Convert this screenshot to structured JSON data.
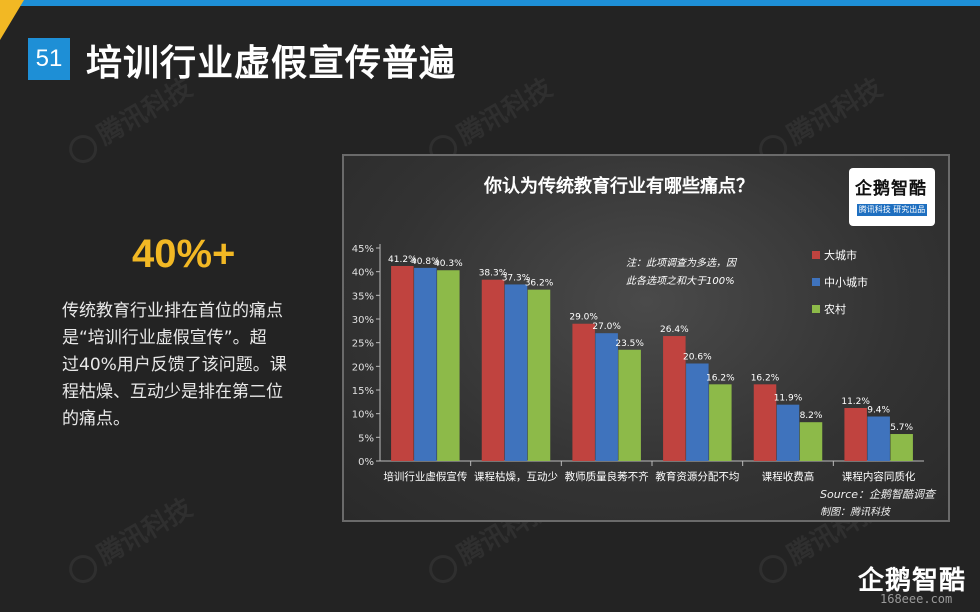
{
  "slide": {
    "number": "51",
    "title": "培训行业虚假宣传普遍",
    "stat": "40%+",
    "description": [
      "传统教育行业排在首位的痛点",
      "是“培训行业虚假宣传”。超",
      "过40%用户反馈了该问题。课",
      "程枯燥、互动少是排在第二位",
      "的痛点。"
    ],
    "watermark": "腾讯科技",
    "brand": "企鹅智酷",
    "site": "168eee.com"
  },
  "logo": {
    "name": "企鹅智酷",
    "tagline": "腾讯科技 研究出品"
  },
  "colors": {
    "big_city": "#c0433f",
    "mid_city": "#3f73bd",
    "rural": "#8dba49",
    "accent": "#f2b824",
    "topbar": "#1e8fd6"
  },
  "chart_data": {
    "type": "bar",
    "title": "你认为传统教育行业有哪些痛点？",
    "categories": [
      "培训行业虚假宣传",
      "课程枯燥，互动少",
      "教师质量良莠不齐",
      "教育资源分配不均",
      "课程收费高",
      "课程内容同质化"
    ],
    "series": [
      {
        "name": "大城市",
        "color": "#c0433f",
        "values": [
          41.2,
          38.3,
          29.0,
          26.4,
          16.2,
          11.2
        ]
      },
      {
        "name": "中小城市",
        "color": "#3f73bd",
        "values": [
          40.8,
          37.3,
          27.0,
          20.6,
          11.9,
          9.4
        ]
      },
      {
        "name": "农村",
        "color": "#8dba49",
        "values": [
          40.3,
          36.2,
          23.5,
          16.2,
          8.2,
          5.7
        ]
      }
    ],
    "ylim": [
      0,
      45
    ],
    "yticks": [
      "0%",
      "5%",
      "10%",
      "15%",
      "20%",
      "25%",
      "30%",
      "35%",
      "40%",
      "45%"
    ],
    "data_labels": [
      [
        "41.2%",
        "38.3%",
        "29.0%",
        "26.4%",
        "16.2%",
        "11.2%"
      ],
      [
        "40.8%",
        "37.3%",
        "27.0%",
        "20.6%",
        "11.9%",
        "9.4%"
      ],
      [
        "40.3%",
        "36.2%",
        "23.5%",
        "16.2%",
        "8.2%",
        "5.7%"
      ]
    ],
    "note": [
      "注：此项调查为多选，因",
      "此各选项之和大于100%"
    ],
    "legend_position": "right",
    "source": "Source：企鹅智酷调查",
    "producer": "制图：腾讯科技"
  }
}
